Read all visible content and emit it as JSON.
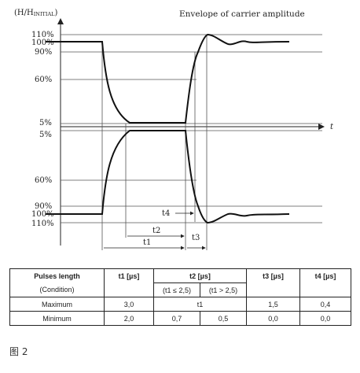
{
  "diagram": {
    "ylabel": "(H/H",
    "ylabel_sub": "INITIAL",
    "ylabel_close": ")",
    "title": "Envelope of carrier amplitude",
    "axis_t": "t",
    "levels_upper": [
      "110%",
      "100%",
      "90%",
      "60%",
      "5%"
    ],
    "levels_lower": [
      "5%",
      "60%",
      "90%",
      "100%",
      "110%"
    ],
    "t1": "t1",
    "t2": "t2",
    "t3": "t3",
    "t4": "t4"
  },
  "table": {
    "header": {
      "c1": "Pulses length",
      "c2": "t1 [µs]",
      "c3": "t2 [µs]",
      "c4": "t3 [µs]",
      "c5": "t4 [µs]"
    },
    "condition": {
      "c1": "(Condition)",
      "c3a": "(t1 ≤ 2,5)",
      "c3b": "(t1 > 2,5)"
    },
    "maximum": {
      "label": "Maximum",
      "t1": "3,0",
      "t2": "t1",
      "t3": "1,5",
      "t4": "0,4"
    },
    "minimum": {
      "label": "Minimum",
      "t1": "2,0",
      "t2a": "0,7",
      "t2b": "0,5",
      "t3": "0,0",
      "t4": "0,0"
    }
  },
  "caption": "图 2"
}
